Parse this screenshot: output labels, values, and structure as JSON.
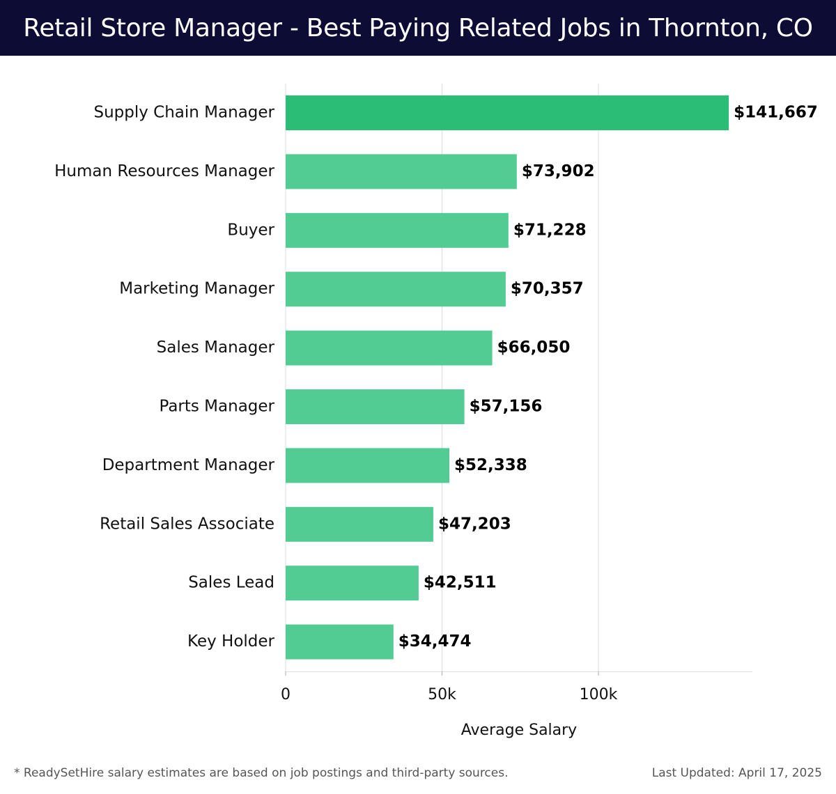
{
  "header": {
    "title": "Retail Store Manager - Best Paying Related Jobs in Thornton, CO"
  },
  "footer": {
    "note": "* ReadySetHire salary estimates are based on job postings and third-party sources.",
    "updated": "Last Updated: April 17, 2025"
  },
  "colors": {
    "header_bg": "#0c0c35",
    "bar_top": "#2bbd76",
    "bar": "#52cc93",
    "grid": "#dddddd"
  },
  "chart_data": {
    "type": "bar",
    "orientation": "horizontal",
    "categories": [
      "Supply Chain Manager",
      "Human Resources Manager",
      "Buyer",
      "Marketing Manager",
      "Sales Manager",
      "Parts Manager",
      "Department Manager",
      "Retail Sales Associate",
      "Sales Lead",
      "Key Holder"
    ],
    "values": [
      141667,
      73902,
      71228,
      70357,
      66050,
      57156,
      52338,
      47203,
      42511,
      34474
    ],
    "value_labels": [
      "$141,667",
      "$73,902",
      "$71,228",
      "$70,357",
      "$66,050",
      "$57,156",
      "$52,338",
      "$47,203",
      "$42,511",
      "$34,474"
    ],
    "xticks": [
      0,
      50000,
      100000
    ],
    "xtick_labels": [
      "0",
      "50k",
      "100k"
    ],
    "xlabel": "Average Salary",
    "ylabel": "",
    "xlim": [
      0,
      150000
    ],
    "grid": true,
    "legend": "none"
  }
}
